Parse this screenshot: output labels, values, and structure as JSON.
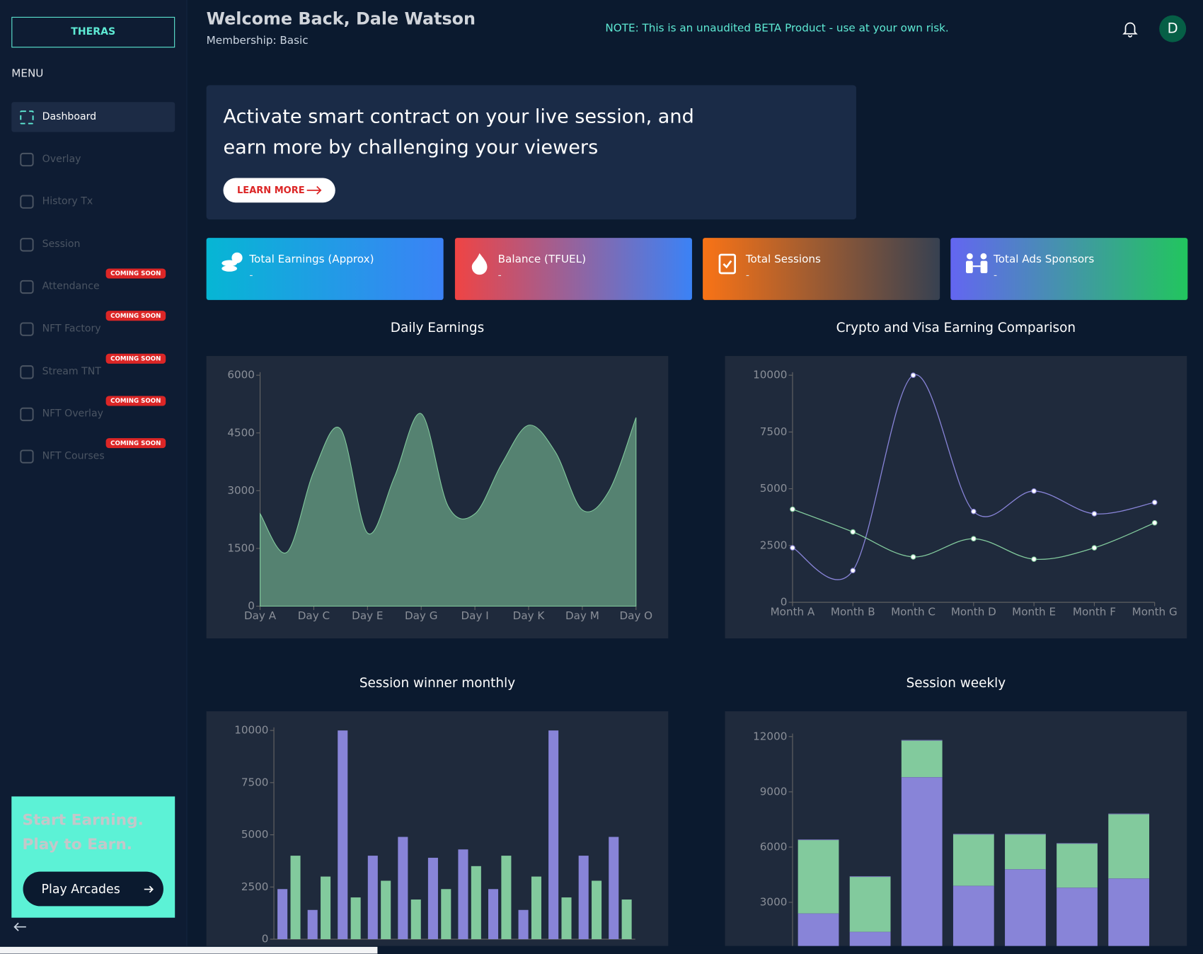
{
  "sidebar": {
    "brand": "THERAS",
    "menu_title": "MENU",
    "items": [
      {
        "label": "Dashboard"
      },
      {
        "label": "Overlay"
      },
      {
        "label": "History Tx"
      },
      {
        "label": "Session"
      },
      {
        "label": "Attendance",
        "badge": "COMING SOON"
      },
      {
        "label": "NFT Factory",
        "badge": "COMING SOON"
      },
      {
        "label": "Stream TNT",
        "badge": "COMING SOON"
      },
      {
        "label": "NFT Overlay",
        "badge": "COMING SOON"
      },
      {
        "label": "NFT Courses",
        "badge": "COMING SOON"
      }
    ],
    "promo": {
      "line1": "Start Earning.",
      "line2": "Play to Earn.",
      "button": "Play Arcades"
    }
  },
  "header": {
    "welcome": "Welcome Back, Dale Watson",
    "membership": "Membership: Basic",
    "note": "NOTE: This is an unaudited BETA Product - use at your own risk.",
    "avatar": "D"
  },
  "banner": {
    "line1": "Activate smart contract on your live session, and",
    "line2": "earn more by challenging your viewers",
    "button": "LEARN MORE"
  },
  "stats": [
    {
      "label": "Total Earnings (Approx)",
      "value": "-"
    },
    {
      "label": "Balance (TFUEL)",
      "value": "-"
    },
    {
      "label": "Total Sessions",
      "value": "-"
    },
    {
      "label": "Total Ads Sponsors",
      "value": "-"
    }
  ],
  "chart_data": [
    {
      "type": "area",
      "title": "Daily Earnings",
      "categories": [
        "Day A",
        null,
        "Day C",
        null,
        "Day E",
        null,
        "Day G",
        null,
        "Day I",
        null,
        "Day K",
        null,
        "Day M",
        null,
        "Day O"
      ],
      "values": [
        2400,
        1400,
        3500,
        4600,
        1900,
        3350,
        5000,
        2600,
        2400,
        3700,
        4700,
        4000,
        2500,
        3000,
        4900
      ],
      "color": "#82ca9d",
      "ylim": [
        0,
        6000
      ],
      "yticks": [
        0,
        1500,
        3000,
        4500,
        6000
      ]
    },
    {
      "type": "line",
      "title": "Crypto and Visa Earning Comparison",
      "categories": [
        "Month A",
        "Month B",
        "Month C",
        "Month D",
        "Month E",
        "Month F",
        "Month G"
      ],
      "series": [
        {
          "color": "#8884d8",
          "values": [
            2400,
            1400,
            10000,
            4000,
            4900,
            3900,
            4400
          ]
        },
        {
          "color": "#82ca9d",
          "values": [
            4100,
            3100,
            2000,
            2800,
            1900,
            2400,
            3500
          ]
        }
      ],
      "ylim": [
        0,
        10000
      ],
      "yticks": [
        0,
        2500,
        5000,
        7500,
        10000
      ]
    },
    {
      "type": "bar",
      "title": "Session winner monthly",
      "categories": [
        null,
        null,
        null,
        null,
        null,
        null,
        null,
        null,
        null,
        null,
        null,
        null
      ],
      "series": [
        {
          "color": "#8884d8",
          "values": [
            2400,
            1400,
            10000,
            4000,
            4900,
            3900,
            4300,
            2400,
            1400,
            10000,
            4000,
            4900
          ]
        },
        {
          "color": "#82ca9d",
          "values": [
            4000,
            3000,
            2000,
            2800,
            1900,
            2400,
            3500,
            4000,
            3000,
            2000,
            2800,
            1900
          ]
        }
      ],
      "ylim": [
        0,
        10000
      ],
      "yticks": [
        0,
        2500,
        5000,
        7500,
        10000
      ]
    },
    {
      "type": "stacked_bar",
      "title": "Session weekly",
      "categories": [
        null,
        null,
        null,
        null,
        null,
        null,
        null
      ],
      "series": [
        {
          "color": "#8884d8",
          "values": [
            2400,
            1400,
            9800,
            3900,
            4800,
            3800,
            4300
          ]
        },
        {
          "color": "#82ca9d",
          "values": [
            4000,
            3000,
            2000,
            2800,
            1900,
            2400,
            3500
          ]
        }
      ],
      "ylim": [
        0,
        12000
      ],
      "yticks": [
        3000,
        6000,
        9000,
        12000
      ]
    }
  ]
}
